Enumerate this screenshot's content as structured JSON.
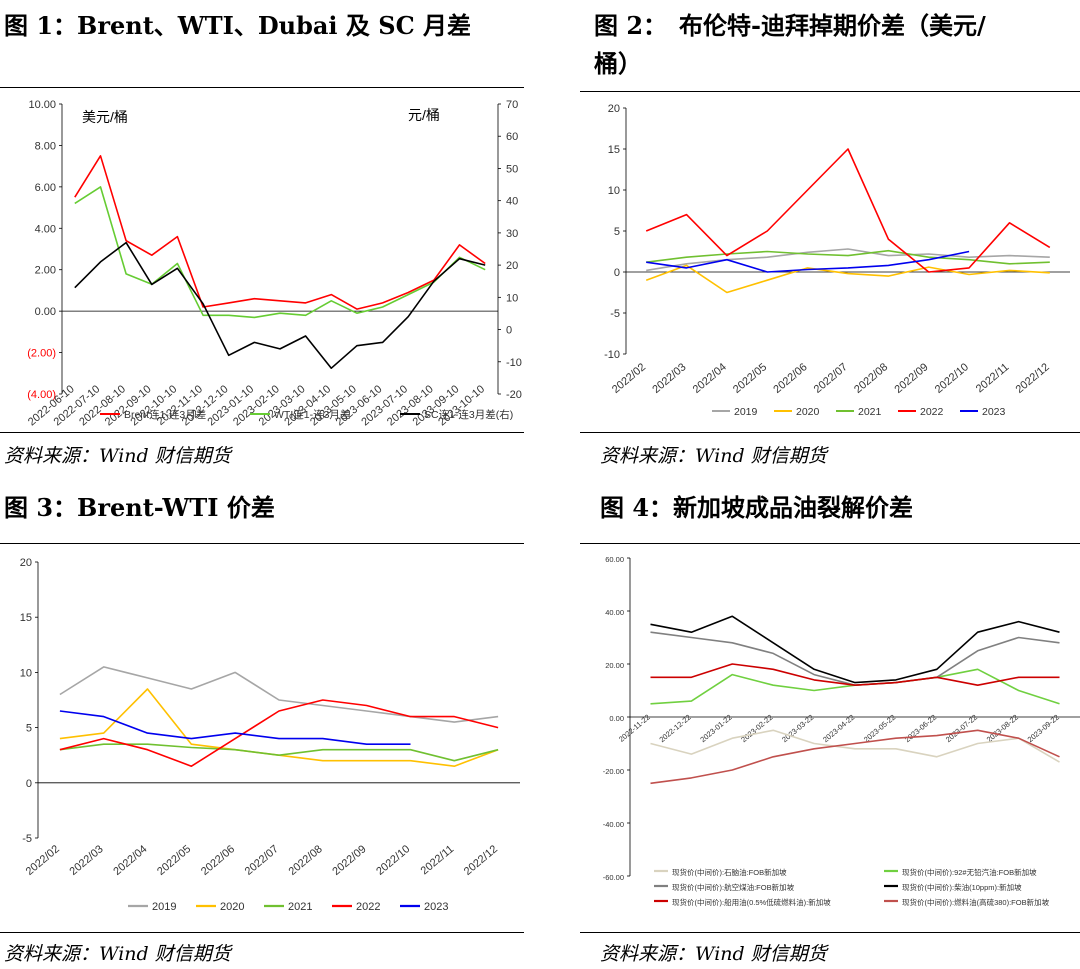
{
  "figures": [
    {
      "title": "图 1：Brent、WTI、Dubai 及 SC 月差",
      "source": "资料来源：Wind 财信期货"
    },
    {
      "title": "图 2：　布伦特-迪拜掉期价差（美元/",
      "title2": "桶）",
      "source": "资料来源：Wind 财信期货"
    },
    {
      "title": "图 3：Brent-WTI 价差",
      "source": "资料来源：Wind 财信期货"
    },
    {
      "title": "图 4：新加坡成品油裂解价差",
      "source": "资料来源：Wind 财信期货"
    }
  ],
  "chart_data": [
    {
      "type": "line",
      "x": [
        "2022-06-10",
        "2022-07-10",
        "2022-08-10",
        "2022-09-10",
        "2022-10-10",
        "2022-11-10",
        "2022-12-10",
        "2023-01-10",
        "2023-02-10",
        "2023-03-10",
        "2023-04-10",
        "2023-05-10",
        "2023-06-10",
        "2023-07-10",
        "2023-08-10",
        "2023-09-10",
        "2023-10-10"
      ],
      "unit_left": "美元/桶",
      "unit_right": "元/桶",
      "ylim": [
        -4,
        10
      ],
      "y_ticks": [
        "10.00",
        "8.00",
        "6.00",
        "4.00",
        "2.00",
        "0.00",
        "(2.00)",
        "(4.00)"
      ],
      "y2lim": [
        -20,
        70
      ],
      "y2_ticks": [
        "70",
        "60",
        "50",
        "40",
        "30",
        "20",
        "10",
        "0",
        "-10",
        "-20"
      ],
      "series": [
        {
          "name": "Brent连1-连3月差",
          "color": "#ff0000",
          "values": [
            5.5,
            7.5,
            3.4,
            2.7,
            3.6,
            0.2,
            0.4,
            0.6,
            0.5,
            0.4,
            0.8,
            0.1,
            0.4,
            0.9,
            1.5,
            3.2,
            2.3
          ]
        },
        {
          "name": "WTI连1-连3月差",
          "color": "#66cc33",
          "values": [
            5.2,
            6.0,
            1.8,
            1.3,
            2.3,
            -0.2,
            -0.2,
            -0.3,
            -0.1,
            -0.2,
            0.5,
            -0.1,
            0.2,
            0.8,
            1.4,
            2.6,
            2.0
          ]
        },
        {
          "name": "SC连1-连3月差(右)",
          "color": "#000000",
          "axis": "right",
          "values": [
            13,
            21,
            27,
            14,
            19,
            8,
            -8,
            -4,
            -6,
            -2,
            -12,
            -5,
            -4,
            4,
            15,
            22,
            20
          ]
        }
      ],
      "legend": "bottom"
    },
    {
      "type": "line",
      "x": [
        "2022/02",
        "2022/03",
        "2022/04",
        "2022/05",
        "2022/06",
        "2022/07",
        "2022/08",
        "2022/09",
        "2022/10",
        "2022/11",
        "2022/12"
      ],
      "ylim": [
        -10,
        20
      ],
      "y_ticks": [
        "20",
        "15",
        "10",
        "5",
        "0",
        "-5",
        "-10"
      ],
      "series": [
        {
          "name": "2019",
          "color": "#a6a6a6",
          "values": [
            0.2,
            1.0,
            1.5,
            1.8,
            2.4,
            2.8,
            2.0,
            2.2,
            1.8,
            2.0,
            1.8
          ]
        },
        {
          "name": "2020",
          "color": "#ffc000",
          "values": [
            -1.0,
            0.8,
            -2.5,
            -1.0,
            0.5,
            -0.2,
            -0.5,
            0.6,
            -0.3,
            0.2,
            -0.1
          ]
        },
        {
          "name": "2021",
          "color": "#70c030",
          "values": [
            1.2,
            1.8,
            2.2,
            2.5,
            2.2,
            2.0,
            2.6,
            1.8,
            1.5,
            1.0,
            1.2
          ]
        },
        {
          "name": "2022",
          "color": "#ff0000",
          "values": [
            5.0,
            7.0,
            2.0,
            5.0,
            10.0,
            15.0,
            4.0,
            0.0,
            0.5,
            6.0,
            3.0
          ]
        },
        {
          "name": "2023",
          "color": "#0000ee",
          "values": [
            1.2,
            0.5,
            1.5,
            0.0,
            0.3,
            0.5,
            0.8,
            1.5,
            2.5,
            null,
            null
          ]
        }
      ],
      "legend": "bottom"
    },
    {
      "type": "line",
      "x": [
        "2022/02",
        "2022/03",
        "2022/04",
        "2022/05",
        "2022/06",
        "2022/07",
        "2022/08",
        "2022/09",
        "2022/10",
        "2022/11",
        "2022/12"
      ],
      "ylim": [
        -5,
        20
      ],
      "y_ticks": [
        "20",
        "15",
        "10",
        "5",
        "0",
        "-5"
      ],
      "series": [
        {
          "name": "2019",
          "color": "#a6a6a6",
          "values": [
            8.0,
            10.5,
            9.5,
            8.5,
            10.0,
            7.5,
            7.0,
            6.5,
            6.0,
            5.5,
            6.0
          ]
        },
        {
          "name": "2020",
          "color": "#ffc000",
          "values": [
            4.0,
            4.5,
            8.5,
            3.5,
            3.0,
            2.5,
            2.0,
            2.0,
            2.0,
            1.5,
            3.0
          ]
        },
        {
          "name": "2021",
          "color": "#70c030",
          "values": [
            3.0,
            3.5,
            3.5,
            3.2,
            3.0,
            2.5,
            3.0,
            3.0,
            3.0,
            2.0,
            3.0
          ]
        },
        {
          "name": "2022",
          "color": "#ff0000",
          "values": [
            3.0,
            4.0,
            3.0,
            1.5,
            4.0,
            6.5,
            7.5,
            7.0,
            6.0,
            6.0,
            5.0
          ]
        },
        {
          "name": "2023",
          "color": "#0000ee",
          "values": [
            6.5,
            6.0,
            4.5,
            4.0,
            4.5,
            4.0,
            4.0,
            3.5,
            3.5,
            null,
            null
          ]
        }
      ],
      "legend": "bottom"
    },
    {
      "type": "line",
      "x": [
        "2022-11-22",
        "2022-12-22",
        "2023-01-22",
        "2023-02-22",
        "2023-03-22",
        "2023-04-22",
        "2023-05-22",
        "2023-06-22",
        "2023-07-22",
        "2023-08-22",
        "2023-09-22"
      ],
      "ylim": [
        -60,
        60
      ],
      "y_ticks": [
        "60.00",
        "40.00",
        "20.00",
        "0.00",
        "-20.00",
        "-40.00",
        "-60.00"
      ],
      "series": [
        {
          "name": "现货价(中间价):石脑油:FOB新加坡",
          "color": "#d9d3bf",
          "values": [
            -10,
            -14,
            -8,
            -5,
            -10,
            -12,
            -12,
            -15,
            -10,
            -8,
            -17
          ]
        },
        {
          "name": "现货价(中间价):92#无铅汽油:FOB新加坡",
          "color": "#70d040",
          "values": [
            5,
            6,
            16,
            12,
            10,
            12,
            13,
            15,
            18,
            10,
            5
          ]
        },
        {
          "name": "现货价(中间价):航空煤油:FOB新加坡",
          "color": "#808080",
          "values": [
            32,
            30,
            28,
            24,
            16,
            12,
            13,
            15,
            25,
            30,
            28
          ]
        },
        {
          "name": "现货价(中间价):柴油(10ppm):新加坡",
          "color": "#000000",
          "values": [
            35,
            32,
            38,
            28,
            18,
            13,
            14,
            18,
            32,
            36,
            32
          ]
        },
        {
          "name": "现货价(中间价):船用油(0.5%低硫燃料油):新加坡",
          "color": "#cc0000",
          "values": [
            15,
            15,
            20,
            18,
            14,
            12,
            13,
            15,
            12,
            15,
            15
          ]
        },
        {
          "name": "现货价(中间价):燃料油(高硫380):FOB新加坡",
          "color": "#c0504d",
          "values": [
            -25,
            -23,
            -20,
            -15,
            -12,
            -10,
            -8,
            -7,
            -5,
            -8,
            -15
          ]
        }
      ],
      "legend": "bottom"
    }
  ]
}
